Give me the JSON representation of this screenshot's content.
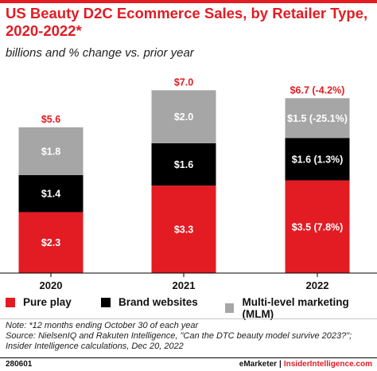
{
  "title": "US Beauty D2C Ecommerce Sales, by Retailer Type, 2020-2022*",
  "subtitle": "billions and % change vs. prior year",
  "chart_data": {
    "type": "bar",
    "stacked": true,
    "title": "US Beauty D2C Ecommerce Sales, by Retailer Type, 2020-2022*",
    "subtitle": "billions and % change vs. prior year",
    "categories": [
      "2020",
      "2021",
      "2022"
    ],
    "series": [
      {
        "name": "Pure play",
        "color": "#e31b23",
        "values": [
          2.3,
          3.3,
          3.5
        ],
        "labels": [
          "$2.3",
          "$3.3",
          "$3.5 (7.8%)"
        ]
      },
      {
        "name": "Brand websites",
        "color": "#000000",
        "values": [
          1.4,
          1.6,
          1.6
        ],
        "labels": [
          "$1.4",
          "$1.6",
          "$1.6 (1.3%)"
        ]
      },
      {
        "name": "Multi-level marketing (MLM)",
        "color": "#a6a6a6",
        "values": [
          1.8,
          2.0,
          1.5
        ],
        "labels": [
          "$1.8",
          "$2.0",
          "$1.5 (-25.1%)"
        ]
      }
    ],
    "totals": [
      5.6,
      7.0,
      6.7
    ],
    "total_labels": [
      "$5.6",
      "$7.0",
      "$6.7 (-4.2%)"
    ],
    "ylim": [
      0,
      7.0
    ],
    "grid": false,
    "legend_position": "bottom"
  },
  "note": {
    "line1": "Note: *12 months ending October 30 of each year",
    "line2": "Source: NielsenIQ and Rakuten Intelligence, \"Can the DTC beauty model survive 2023?\";",
    "line3": "Insider Intelligence calculations, Dec 20, 2022"
  },
  "footer": {
    "chart_id": "280601",
    "brand": "eMarketer",
    "separator": "|",
    "site": "InsiderIntelligence.com"
  }
}
